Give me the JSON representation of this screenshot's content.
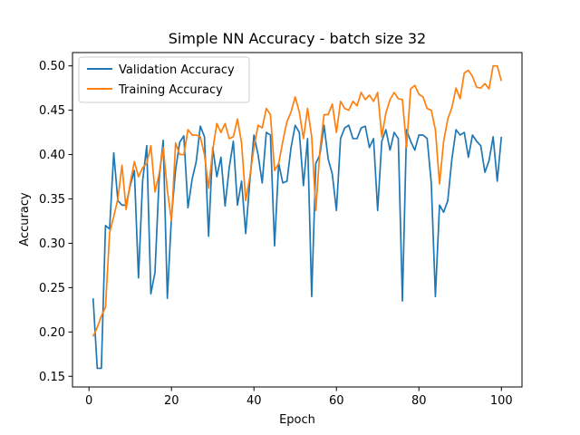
{
  "chart_data": {
    "type": "line",
    "title": "Simple NN Accuracy - batch size 32",
    "xlabel": "Epoch",
    "ylabel": "Accuracy",
    "xlim": [
      -4,
      105
    ],
    "ylim": [
      0.138,
      0.515
    ],
    "xticks": [
      0,
      20,
      40,
      60,
      80,
      100
    ],
    "yticks": [
      0.15,
      0.2,
      0.25,
      0.3,
      0.35,
      0.4,
      0.45,
      0.5
    ],
    "ytick_labels": [
      "0.15",
      "0.20",
      "0.25",
      "0.30",
      "0.35",
      "0.40",
      "0.45",
      "0.50"
    ],
    "grid": false,
    "legend_position": "top-left",
    "x": [
      1,
      2,
      3,
      4,
      5,
      6,
      7,
      8,
      9,
      10,
      11,
      12,
      13,
      14,
      15,
      16,
      17,
      18,
      19,
      20,
      21,
      22,
      23,
      24,
      25,
      26,
      27,
      28,
      29,
      30,
      31,
      32,
      33,
      34,
      35,
      36,
      37,
      38,
      39,
      40,
      41,
      42,
      43,
      44,
      45,
      46,
      47,
      48,
      49,
      50,
      51,
      52,
      53,
      54,
      55,
      56,
      57,
      58,
      59,
      60,
      61,
      62,
      63,
      64,
      65,
      66,
      67,
      68,
      69,
      70,
      71,
      72,
      73,
      74,
      75,
      76,
      77,
      78,
      79,
      80,
      81,
      82,
      83,
      84,
      85,
      86,
      87,
      88,
      89,
      90,
      91,
      92,
      93,
      94,
      95,
      96,
      97,
      98,
      99,
      100
    ],
    "series": [
      {
        "name": "Validation Accuracy",
        "color": "#1f77b4",
        "values": [
          0.238,
          0.159,
          0.159,
          0.32,
          0.316,
          0.402,
          0.348,
          0.343,
          0.343,
          0.365,
          0.382,
          0.261,
          0.37,
          0.41,
          0.243,
          0.267,
          0.372,
          0.416,
          0.238,
          0.33,
          0.383,
          0.414,
          0.421,
          0.34,
          0.372,
          0.392,
          0.432,
          0.42,
          0.308,
          0.408,
          0.375,
          0.397,
          0.342,
          0.385,
          0.415,
          0.343,
          0.37,
          0.311,
          0.37,
          0.422,
          0.4,
          0.368,
          0.425,
          0.422,
          0.297,
          0.39,
          0.368,
          0.37,
          0.408,
          0.433,
          0.425,
          0.365,
          0.418,
          0.24,
          0.39,
          0.4,
          0.433,
          0.395,
          0.378,
          0.337,
          0.418,
          0.43,
          0.433,
          0.418,
          0.418,
          0.43,
          0.432,
          0.408,
          0.418,
          0.337,
          0.415,
          0.428,
          0.405,
          0.425,
          0.418,
          0.235,
          0.428,
          0.415,
          0.405,
          0.422,
          0.422,
          0.418,
          0.368,
          0.24,
          0.343,
          0.335,
          0.348,
          0.395,
          0.428,
          0.422,
          0.425,
          0.397,
          0.422,
          0.415,
          0.41,
          0.38,
          0.393,
          0.42,
          0.37,
          0.42
        ]
      },
      {
        "name": "Training Accuracy",
        "color": "#ff7f0e",
        "values": [
          0.195,
          0.205,
          0.218,
          0.228,
          0.312,
          0.33,
          0.35,
          0.388,
          0.338,
          0.368,
          0.392,
          0.375,
          0.385,
          0.39,
          0.41,
          0.358,
          0.378,
          0.408,
          0.36,
          0.325,
          0.413,
          0.4,
          0.4,
          0.428,
          0.422,
          0.422,
          0.42,
          0.4,
          0.362,
          0.405,
          0.435,
          0.425,
          0.435,
          0.418,
          0.42,
          0.44,
          0.413,
          0.348,
          0.375,
          0.408,
          0.433,
          0.43,
          0.452,
          0.445,
          0.382,
          0.39,
          0.415,
          0.437,
          0.448,
          0.465,
          0.448,
          0.418,
          0.452,
          0.42,
          0.337,
          0.405,
          0.445,
          0.445,
          0.457,
          0.425,
          0.46,
          0.452,
          0.45,
          0.46,
          0.455,
          0.47,
          0.462,
          0.467,
          0.46,
          0.47,
          0.42,
          0.447,
          0.462,
          0.47,
          0.463,
          0.462,
          0.408,
          0.474,
          0.478,
          0.468,
          0.465,
          0.452,
          0.45,
          0.428,
          0.367,
          0.415,
          0.44,
          0.453,
          0.475,
          0.463,
          0.492,
          0.495,
          0.488,
          0.476,
          0.475,
          0.48,
          0.474,
          0.5,
          0.5,
          0.483
        ]
      }
    ]
  }
}
